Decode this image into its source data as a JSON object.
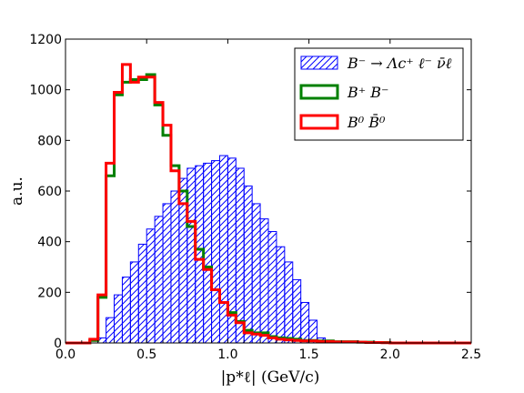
{
  "chart_data": {
    "type": "histogram",
    "xlabel": "|p*ℓ|  (GeV/c)",
    "ylabel": "a.u.",
    "xlim": [
      0,
      2.5
    ],
    "ylim": [
      0,
      1200
    ],
    "x_ticks": [
      0.0,
      0.5,
      1.0,
      1.5,
      2.0,
      2.5
    ],
    "x_tick_labels": [
      "0.0",
      "0.5",
      "1.0",
      "1.5",
      "2.0",
      "2.5"
    ],
    "y_ticks": [
      0,
      200,
      400,
      600,
      800,
      1000,
      1200
    ],
    "y_tick_labels": [
      "0",
      "200",
      "400",
      "600",
      "800",
      "1000",
      "1200"
    ],
    "bin_edges": [
      0.0,
      0.05,
      0.1,
      0.15,
      0.2,
      0.25,
      0.3,
      0.35,
      0.4,
      0.45,
      0.5,
      0.55,
      0.6,
      0.65,
      0.7,
      0.75,
      0.8,
      0.85,
      0.9,
      0.95,
      1.0,
      1.05,
      1.1,
      1.15,
      1.2,
      1.25,
      1.3,
      1.35,
      1.4,
      1.45,
      1.5,
      1.55,
      1.6,
      1.65,
      1.7,
      1.75,
      1.8,
      1.85,
      1.9,
      1.95,
      2.0,
      2.05,
      2.1,
      2.15,
      2.2,
      2.25,
      2.3,
      2.35,
      2.4,
      2.45,
      2.5
    ],
    "legend_position": "top-right",
    "series": [
      {
        "name": "B⁻ → Λc⁺ ℓ⁻ ν̄ℓ",
        "style": "hatched",
        "color": "#0000ff",
        "values": [
          0,
          0,
          0,
          0,
          20,
          100,
          190,
          260,
          320,
          390,
          450,
          500,
          550,
          600,
          650,
          690,
          700,
          710,
          720,
          740,
          730,
          690,
          620,
          550,
          490,
          440,
          380,
          320,
          250,
          160,
          90,
          20,
          5,
          0,
          0,
          0,
          0,
          0,
          0,
          0,
          0,
          0,
          0,
          0,
          0,
          0,
          0,
          0,
          0,
          0
        ]
      },
      {
        "name": "B⁺ B⁻",
        "style": "step",
        "color": "#008000",
        "values": [
          0,
          0,
          0,
          10,
          180,
          660,
          980,
          1030,
          1040,
          1040,
          1060,
          940,
          820,
          700,
          600,
          460,
          370,
          300,
          210,
          160,
          120,
          85,
          50,
          40,
          40,
          25,
          20,
          18,
          15,
          10,
          10,
          8,
          8,
          5,
          5,
          5,
          3,
          3,
          2,
          2,
          0,
          0,
          0,
          0,
          0,
          0,
          0,
          0,
          0,
          0
        ]
      },
      {
        "name": "B⁰ B̄⁰",
        "style": "step",
        "color": "#ff0000",
        "values": [
          0,
          0,
          0,
          15,
          190,
          710,
          990,
          1100,
          1030,
          1050,
          1050,
          950,
          860,
          680,
          550,
          480,
          330,
          290,
          210,
          160,
          110,
          80,
          40,
          35,
          30,
          20,
          15,
          12,
          10,
          8,
          8,
          6,
          6,
          4,
          4,
          4,
          3,
          2,
          2,
          1,
          0,
          0,
          0,
          0,
          0,
          0,
          0,
          0,
          0,
          0
        ]
      }
    ]
  },
  "legend": {
    "items": [
      {
        "label": "B⁻ → Λc⁺ ℓ⁻ ν̄ℓ",
        "color": "#0000ff"
      },
      {
        "label": "B⁺ B⁻",
        "color": "#008000"
      },
      {
        "label": "B⁰ B̄⁰",
        "color": "#ff0000"
      }
    ]
  }
}
